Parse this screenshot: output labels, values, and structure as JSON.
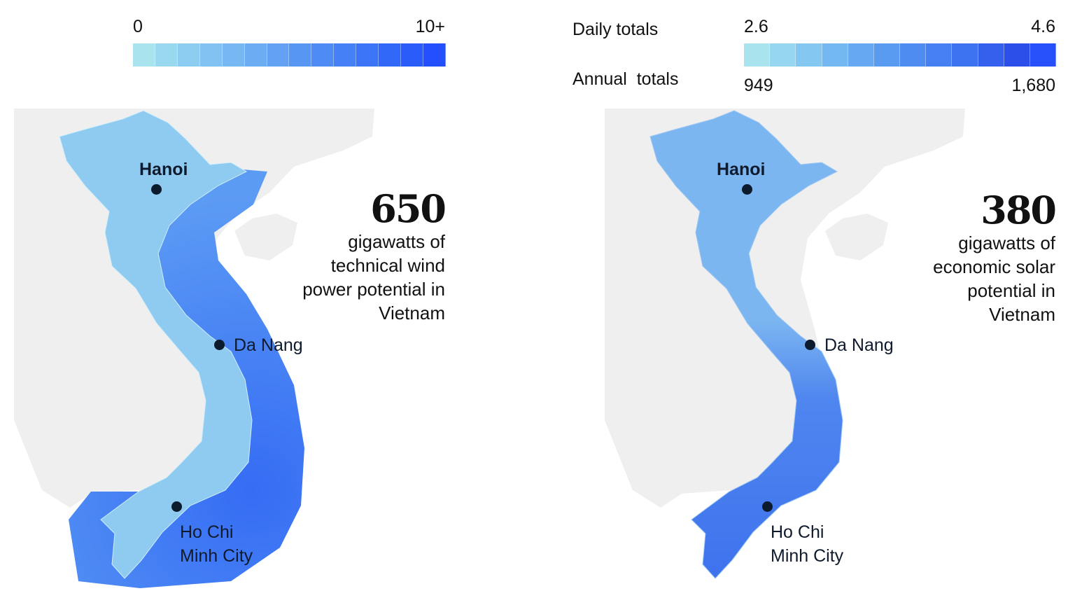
{
  "wind": {
    "legend": {
      "min_label": "0",
      "max_label": "10+",
      "colors": [
        "#a8e3ee",
        "#9ad8f0",
        "#8ccdf1",
        "#82c2f2",
        "#77b7f2",
        "#6cacf3",
        "#62a1f4",
        "#5896f4",
        "#4e8bf5",
        "#4580f6",
        "#3b74f7",
        "#3268f8",
        "#2a5cfa",
        "#2350fc"
      ]
    },
    "stat_number": "650",
    "stat_text": [
      "gigawatts of",
      "technical wind",
      "power potential in",
      "Vietnam"
    ],
    "colors": {
      "land": "#8fcaf1",
      "offshore_near": "#5c9bf4",
      "offshore_far": "#356cf4",
      "background_land": "#efefef"
    }
  },
  "solar": {
    "legend": {
      "daily_label": "Daily totals",
      "annual_label": "Annual  totals",
      "daily_min": "2.6",
      "daily_max": "4.6",
      "annual_min": "949",
      "annual_max": "1,680",
      "colors": [
        "#a8e3ee",
        "#96d6f0",
        "#84c7f1",
        "#74b8f2",
        "#66a9f2",
        "#5a9bf2",
        "#4f8cf2",
        "#467ff1",
        "#3d72f0",
        "#355fed",
        "#2d4fe9",
        "#2750fb"
      ]
    },
    "stat_number": "380",
    "stat_text": [
      "gigawatts of",
      "economic solar",
      "potential in",
      "Vietnam"
    ],
    "colors": {
      "north": "#7cb6f0",
      "south": "#3f73ee",
      "background_land": "#efefef"
    }
  },
  "cities": {
    "hanoi": "Hanoi",
    "danang": "Da Nang",
    "hcmc_line1": "Ho Chi",
    "hcmc_line2": "Minh City"
  }
}
